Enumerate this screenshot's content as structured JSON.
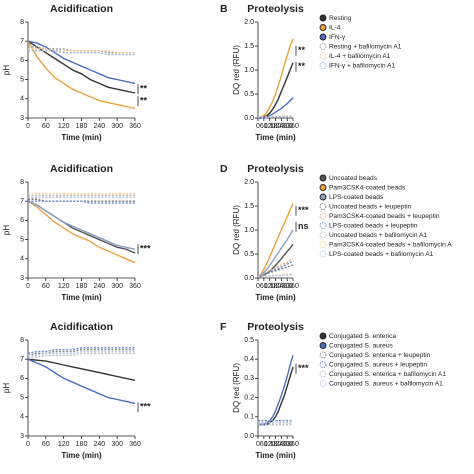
{
  "chart_data": [
    {
      "type": "line",
      "title": "Acidification",
      "xlabel": "Time (min)",
      "ylabel": "pH",
      "x": [
        0,
        30,
        60,
        90,
        120,
        150,
        180,
        210,
        240,
        270,
        300,
        330,
        360
      ],
      "xlim": [
        0,
        360
      ],
      "xticks": [
        0,
        60,
        120,
        180,
        240,
        300,
        360
      ],
      "ylim": [
        3,
        8
      ],
      "yticks": [
        3,
        4,
        5,
        6,
        7,
        8
      ],
      "annotations": [
        "**",
        "**"
      ],
      "series": [
        {
          "color": "#333333",
          "style": "solid",
          "values": [
            7.0,
            6.7,
            6.4,
            6.1,
            5.8,
            5.5,
            5.3,
            5.0,
            4.8,
            4.6,
            4.5,
            4.4,
            4.3
          ]
        },
        {
          "color": "#f0a040",
          "style": "solid",
          "values": [
            7.0,
            6.2,
            5.6,
            5.1,
            4.8,
            4.5,
            4.3,
            4.1,
            3.9,
            3.8,
            3.7,
            3.6,
            3.5
          ]
        },
        {
          "color": "#4a6fc0",
          "style": "solid",
          "values": [
            7.0,
            6.9,
            6.7,
            6.4,
            6.1,
            5.9,
            5.7,
            5.5,
            5.3,
            5.1,
            5.0,
            4.9,
            4.8
          ]
        },
        {
          "color": "#999999",
          "style": "dashed",
          "values": [
            6.7,
            6.7,
            6.6,
            6.6,
            6.6,
            6.5,
            6.5,
            6.5,
            6.5,
            6.4,
            6.4,
            6.4,
            6.4
          ]
        },
        {
          "color": "#f3c48a",
          "style": "dashed",
          "values": [
            6.6,
            6.6,
            6.6,
            6.5,
            6.5,
            6.5,
            6.5,
            6.5,
            6.5,
            6.5,
            6.4,
            6.4,
            6.4
          ]
        },
        {
          "color": "#9fb3e0",
          "style": "dashed",
          "values": [
            6.5,
            6.5,
            6.5,
            6.5,
            6.4,
            6.4,
            6.4,
            6.4,
            6.4,
            6.3,
            6.3,
            6.3,
            6.3
          ]
        }
      ]
    },
    {
      "type": "line",
      "panel_label": "B",
      "title": "Proteolysis",
      "xlabel": "Time (min)",
      "ylabel": "DQ red (RFU)",
      "x": [
        0,
        30,
        60,
        90,
        120,
        150,
        180,
        210,
        240,
        270,
        300,
        330,
        360
      ],
      "xlim": [
        0,
        360
      ],
      "xticks": [
        0,
        60,
        120,
        180,
        240,
        300,
        360
      ],
      "ylim": [
        0,
        2
      ],
      "yticks": [
        {
          "value": 0,
          "label": "0.0"
        },
        0.5,
        {
          "value": 1,
          "label": "1.0"
        },
        1.5,
        {
          "value": 2,
          "label": "2.0"
        }
      ],
      "annotations": [
        "**",
        "**"
      ],
      "series": [
        {
          "name": "Resting",
          "color": "#333333",
          "style": "solid",
          "values": [
            0,
            0,
            0.02,
            0.05,
            0.1,
            0.18,
            0.28,
            0.4,
            0.55,
            0.7,
            0.85,
            1.0,
            1.15
          ]
        },
        {
          "name": "IL-4",
          "color": "#f0a040",
          "style": "solid",
          "values": [
            0,
            0.02,
            0.05,
            0.12,
            0.22,
            0.35,
            0.5,
            0.68,
            0.88,
            1.1,
            1.3,
            1.5,
            1.65
          ]
        },
        {
          "name": "IFN-γ",
          "color": "#4a6fc0",
          "style": "solid",
          "values": [
            0,
            0,
            0.01,
            0.03,
            0.05,
            0.08,
            0.12,
            0.16,
            0.2,
            0.25,
            0.3,
            0.36,
            0.42
          ]
        },
        {
          "name": "Resting + bafilomycin A1",
          "color": "#999999",
          "style": "dashed",
          "values": [
            0.02,
            0.02,
            0.02,
            0.02,
            0.02,
            0.02,
            0.03,
            0.03,
            0.03,
            0.03,
            0.03,
            0.03,
            0.03
          ]
        },
        {
          "name": "IL-4 + bafilomycin A1",
          "color": "#f3c48a",
          "style": "dashed",
          "values": [
            0.02,
            0.02,
            0.02,
            0.03,
            0.03,
            0.03,
            0.03,
            0.03,
            0.04,
            0.04,
            0.04,
            0.04,
            0.04
          ]
        },
        {
          "name": "IFN-γ + bafilomycin A1",
          "color": "#9fb3e0",
          "style": "dashed",
          "values": [
            0.01,
            0.01,
            0.01,
            0.01,
            0.02,
            0.02,
            0.02,
            0.02,
            0.02,
            0.02,
            0.02,
            0.02,
            0.02
          ]
        }
      ]
    },
    {
      "type": "line",
      "title": "Acidification",
      "xlabel": "Time (min)",
      "ylabel": "pH",
      "x": [
        0,
        30,
        60,
        90,
        120,
        150,
        180,
        210,
        240,
        270,
        300,
        330,
        360
      ],
      "xlim": [
        0,
        360
      ],
      "xticks": [
        0,
        60,
        120,
        180,
        240,
        300,
        360
      ],
      "ylim": [
        3,
        8
      ],
      "yticks": [
        3,
        4,
        5,
        6,
        7,
        8
      ],
      "annotations": [
        "***"
      ],
      "series": [
        {
          "color": "#555555",
          "style": "solid",
          "values": [
            7.0,
            6.8,
            6.5,
            6.2,
            5.9,
            5.6,
            5.4,
            5.2,
            5.0,
            4.8,
            4.6,
            4.5,
            4.3
          ]
        },
        {
          "color": "#f0a040",
          "style": "solid",
          "values": [
            7.0,
            6.7,
            6.3,
            5.9,
            5.6,
            5.3,
            5.1,
            4.9,
            4.6,
            4.4,
            4.2,
            4.0,
            3.8
          ]
        },
        {
          "color": "#8aa0c8",
          "style": "solid",
          "values": [
            7.0,
            6.8,
            6.5,
            6.2,
            5.9,
            5.7,
            5.5,
            5.3,
            5.1,
            4.9,
            4.7,
            4.6,
            4.5
          ]
        },
        {
          "color": "#777777",
          "style": "dashed",
          "values": [
            7.1,
            7.1,
            7.0,
            7.0,
            7.0,
            7.0,
            7.0,
            7.0,
            7.0,
            7.0,
            7.0,
            7.0,
            7.0
          ]
        },
        {
          "color": "#e9b070",
          "style": "dashed",
          "values": [
            7.2,
            7.2,
            7.2,
            7.2,
            7.3,
            7.3,
            7.3,
            7.3,
            7.3,
            7.3,
            7.3,
            7.3,
            7.3
          ]
        },
        {
          "color": "#6c8bd0",
          "style": "dashed",
          "values": [
            7.0,
            7.0,
            7.0,
            7.0,
            7.0,
            7.0,
            7.0,
            6.9,
            6.9,
            6.9,
            6.9,
            6.9,
            6.9
          ]
        },
        {
          "color": "#bbbbbb",
          "style": "dashed",
          "values": [
            7.3,
            7.3,
            7.3,
            7.3,
            7.3,
            7.3,
            7.3,
            7.3,
            7.3,
            7.3,
            7.3,
            7.3,
            7.3
          ]
        },
        {
          "color": "#f6d2a0",
          "style": "dashed",
          "values": [
            7.4,
            7.4,
            7.4,
            7.4,
            7.4,
            7.4,
            7.4,
            7.4,
            7.4,
            7.4,
            7.4,
            7.4,
            7.4
          ]
        },
        {
          "color": "#b8c8ea",
          "style": "dashed",
          "values": [
            7.2,
            7.2,
            7.2,
            7.2,
            7.2,
            7.2,
            7.2,
            7.2,
            7.2,
            7.2,
            7.2,
            7.2,
            7.2
          ]
        }
      ]
    },
    {
      "type": "line",
      "panel_label": "D",
      "title": "Proteolysis",
      "xlabel": "Time (min)",
      "ylabel": "DQ red (RFU)",
      "x": [
        0,
        30,
        60,
        90,
        120,
        150,
        180,
        210,
        240,
        270,
        300,
        330,
        360
      ],
      "xlim": [
        0,
        360
      ],
      "xticks": [
        0,
        60,
        120,
        180,
        240,
        300,
        360
      ],
      "ylim": [
        0,
        2
      ],
      "yticks": [
        {
          "value": 0,
          "label": "0.0"
        },
        0.5,
        {
          "value": 1,
          "label": "1.0"
        },
        1.5,
        {
          "value": 2,
          "label": "2.0"
        }
      ],
      "annotations": [
        "***",
        "ns"
      ],
      "series": [
        {
          "name": "Uncoated beads",
          "color": "#555555",
          "style": "solid",
          "values": [
            0.03,
            0.04,
            0.06,
            0.1,
            0.14,
            0.2,
            0.26,
            0.33,
            0.4,
            0.48,
            0.55,
            0.62,
            0.7
          ]
        },
        {
          "name": "Pam3CSK4-coated beads",
          "color": "#f0a040",
          "style": "solid",
          "values": [
            0.03,
            0.08,
            0.18,
            0.3,
            0.44,
            0.58,
            0.72,
            0.86,
            1.0,
            1.14,
            1.28,
            1.42,
            1.55
          ]
        },
        {
          "name": "LPS-coated beads",
          "color": "#8aa0c8",
          "style": "solid",
          "values": [
            0.03,
            0.06,
            0.11,
            0.18,
            0.26,
            0.35,
            0.44,
            0.53,
            0.62,
            0.71,
            0.8,
            0.9,
            1.0
          ]
        },
        {
          "name": "Uncoated beads + leupeptin",
          "color": "#777777",
          "style": "dashed",
          "values": [
            0.03,
            0.05,
            0.07,
            0.09,
            0.11,
            0.13,
            0.15,
            0.17,
            0.19,
            0.21,
            0.23,
            0.25,
            0.27
          ]
        },
        {
          "name": "Pam3CSK4-coated beads + leupeptin",
          "color": "#e9b070",
          "style": "dashed",
          "values": [
            0.03,
            0.06,
            0.09,
            0.12,
            0.15,
            0.18,
            0.21,
            0.24,
            0.27,
            0.3,
            0.33,
            0.37,
            0.4
          ]
        },
        {
          "name": "LPS-coated beads + leupeptin",
          "color": "#6c8bd0",
          "style": "dashed",
          "values": [
            0.03,
            0.05,
            0.08,
            0.1,
            0.13,
            0.15,
            0.18,
            0.2,
            0.23,
            0.26,
            0.29,
            0.32,
            0.35
          ]
        },
        {
          "name": "Uncoated beads + bafilomycin A1",
          "color": "#bbbbbb",
          "style": "dashed",
          "values": [
            0.03,
            0.03,
            0.04,
            0.04,
            0.05,
            0.05,
            0.05,
            0.06,
            0.06,
            0.06,
            0.07,
            0.07,
            0.07
          ]
        },
        {
          "name": "Pam3CSK4-coated beads + bafilomycin A",
          "color": "#f6d2a0",
          "style": "dashed",
          "values": [
            0.03,
            0.04,
            0.04,
            0.05,
            0.05,
            0.06,
            0.06,
            0.07,
            0.07,
            0.08,
            0.08,
            0.09,
            0.1
          ]
        },
        {
          "name": "LPS-coated beads + bafilomycin A1",
          "color": "#b8c8ea",
          "style": "dashed",
          "values": [
            0.03,
            0.03,
            0.03,
            0.04,
            0.04,
            0.04,
            0.05,
            0.05,
            0.05,
            0.06,
            0.06,
            0.06,
            0.06
          ]
        }
      ]
    },
    {
      "type": "line",
      "title": "Acidification",
      "xlabel": "Time (min)",
      "ylabel": "pH",
      "x": [
        0,
        30,
        60,
        90,
        120,
        150,
        180,
        210,
        240,
        270,
        300,
        330,
        360
      ],
      "xlim": [
        0,
        360
      ],
      "xticks": [
        0,
        60,
        120,
        180,
        240,
        300,
        360
      ],
      "ylim": [
        3,
        8
      ],
      "yticks": [
        3,
        4,
        5,
        6,
        7,
        8
      ],
      "annotations": [
        "***"
      ],
      "series": [
        {
          "color": "#333333",
          "style": "solid",
          "values": [
            7.0,
            6.95,
            6.9,
            6.8,
            6.7,
            6.6,
            6.5,
            6.4,
            6.3,
            6.2,
            6.1,
            6.0,
            5.9
          ]
        },
        {
          "color": "#4a6fc0",
          "style": "solid",
          "values": [
            7.0,
            6.8,
            6.6,
            6.3,
            6.0,
            5.8,
            5.6,
            5.4,
            5.2,
            5.0,
            4.9,
            4.8,
            4.7
          ]
        },
        {
          "color": "#888888",
          "style": "dashed",
          "values": [
            7.2,
            7.3,
            7.3,
            7.4,
            7.4,
            7.4,
            7.5,
            7.5,
            7.5,
            7.5,
            7.5,
            7.5,
            7.5
          ]
        },
        {
          "color": "#6c8bd0",
          "style": "dashed",
          "values": [
            7.3,
            7.4,
            7.4,
            7.5,
            7.5,
            7.5,
            7.6,
            7.6,
            7.6,
            7.6,
            7.6,
            7.6,
            7.6
          ]
        },
        {
          "color": "#bbbbbb",
          "style": "dashed",
          "values": [
            7.1,
            7.1,
            7.2,
            7.2,
            7.2,
            7.2,
            7.3,
            7.3,
            7.3,
            7.3,
            7.3,
            7.3,
            7.3
          ]
        },
        {
          "color": "#b8c8ea",
          "style": "dashed",
          "values": [
            7.2,
            7.2,
            7.3,
            7.3,
            7.3,
            7.3,
            7.4,
            7.4,
            7.4,
            7.4,
            7.4,
            7.4,
            7.4
          ]
        }
      ]
    },
    {
      "type": "line",
      "panel_label": "F",
      "title": "Proteolysis",
      "xlabel": "Time (min)",
      "ylabel": "DQ red (RFU)",
      "x": [
        0,
        30,
        60,
        90,
        120,
        150,
        180,
        210,
        240,
        270,
        300,
        330,
        360
      ],
      "xlim": [
        0,
        360
      ],
      "xticks": [
        0,
        60,
        120,
        180,
        240,
        300,
        360
      ],
      "ylim": [
        0,
        0.5
      ],
      "yticks": [
        {
          "value": 0,
          "label": "0.0"
        },
        0.1,
        0.2,
        0.3,
        0.4,
        0.5
      ],
      "annotations": [
        "***"
      ],
      "series": [
        {
          "name": "Conjugated S. enterica",
          "color": "#333333",
          "style": "solid",
          "values": [
            0.06,
            0.06,
            0.06,
            0.06,
            0.07,
            0.08,
            0.1,
            0.13,
            0.17,
            0.21,
            0.26,
            0.31,
            0.36
          ]
        },
        {
          "name": "Conjugated S. aureus",
          "color": "#4a6fc0",
          "style": "solid",
          "values": [
            0.06,
            0.06,
            0.06,
            0.07,
            0.08,
            0.1,
            0.13,
            0.17,
            0.21,
            0.26,
            0.31,
            0.37,
            0.42
          ]
        },
        {
          "name": "Conjugated S. enterica + leupeptin",
          "color": "#888888",
          "style": "dashed",
          "values": [
            0.07,
            0.07,
            0.07,
            0.07,
            0.07,
            0.07,
            0.07,
            0.07,
            0.07,
            0.07,
            0.07,
            0.07,
            0.07
          ]
        },
        {
          "name": "Conjugated S. aureus + leupeptin",
          "color": "#6c8bd0",
          "style": "dashed",
          "values": [
            0.08,
            0.08,
            0.08,
            0.08,
            0.08,
            0.08,
            0.08,
            0.08,
            0.08,
            0.08,
            0.08,
            0.08,
            0.08
          ]
        },
        {
          "name": "Conjugated S. enterica + bafilomycin A1",
          "color": "#bbbbbb",
          "style": "dashed",
          "values": [
            0.06,
            0.06,
            0.06,
            0.06,
            0.06,
            0.06,
            0.06,
            0.06,
            0.06,
            0.06,
            0.06,
            0.06,
            0.06
          ]
        },
        {
          "name": "Conjugated S. aureus + bafilomycin A1",
          "color": "#b8c8ea",
          "style": "dashed",
          "values": [
            0.07,
            0.07,
            0.07,
            0.07,
            0.07,
            0.07,
            0.07,
            0.07,
            0.07,
            0.07,
            0.07,
            0.07,
            0.07
          ]
        }
      ]
    }
  ]
}
